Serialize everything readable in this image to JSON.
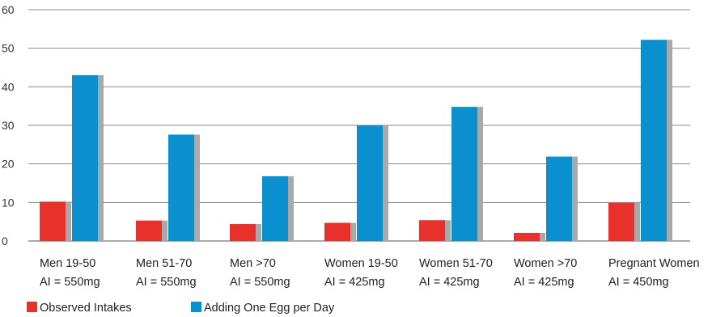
{
  "chart_data": {
    "type": "bar",
    "categories": [
      {
        "name": "Men 19-50",
        "ai": "AI = 550mg"
      },
      {
        "name": "Men 51-70",
        "ai": "AI = 550mg"
      },
      {
        "name": "Men >70",
        "ai": "AI = 550mg"
      },
      {
        "name": "Women 19-50",
        "ai": "AI = 425mg"
      },
      {
        "name": "Women 51-70",
        "ai": "AI = 425mg"
      },
      {
        "name": "Women >70",
        "ai": "AI = 425mg"
      },
      {
        "name": "Pregnant Women",
        "ai": "AI = 450mg"
      }
    ],
    "series": [
      {
        "name": "Observed Intakes",
        "color": "#e8312a",
        "values": [
          10.2,
          5.3,
          4.4,
          4.7,
          5.4,
          2.1,
          9.9
        ]
      },
      {
        "name": "Adding One Egg per Day",
        "color": "#0a8fcf",
        "values": [
          43,
          27.6,
          16.8,
          30,
          34.8,
          21.9,
          52.2
        ]
      }
    ],
    "yticks": [
      "0",
      "10",
      "20",
      "30",
      "40",
      "50",
      "60"
    ],
    "ylim": [
      0,
      60
    ],
    "grid": true,
    "legend_position": "bottom-left",
    "title": "",
    "xlabel": "",
    "ylabel": ""
  }
}
